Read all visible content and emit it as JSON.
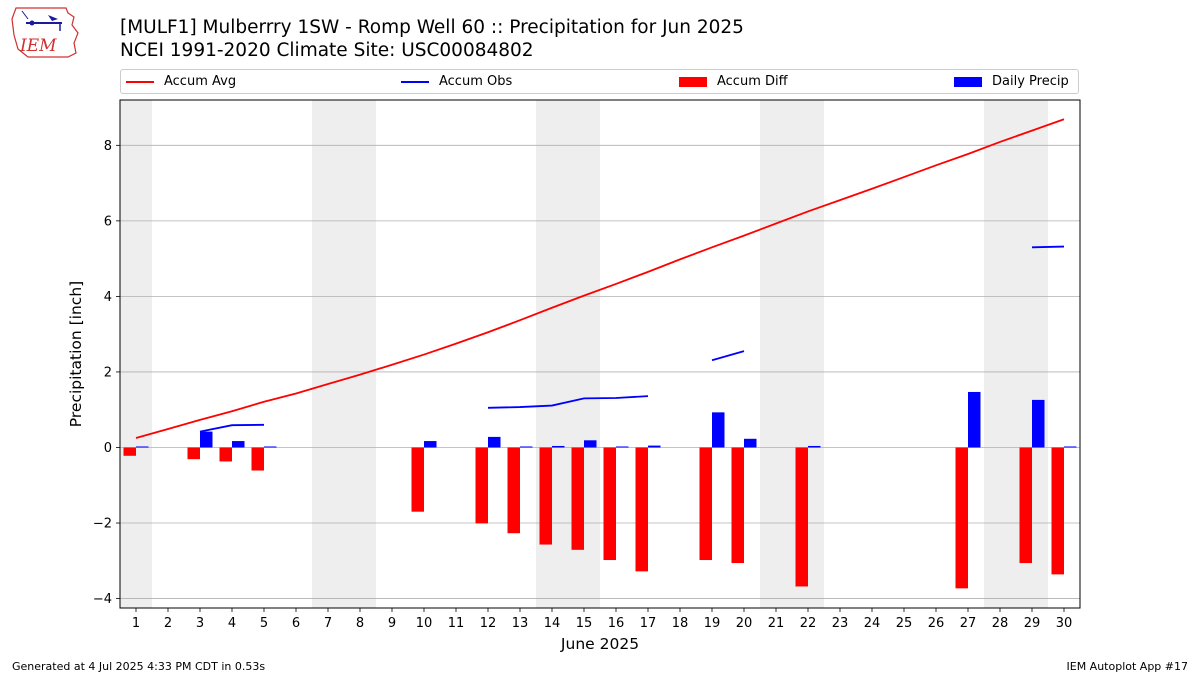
{
  "header": {
    "title_line1": "[MULF1] Mulberrry 1SW - Romp Well 60 :: Precipitation for Jun 2025",
    "title_line2": "NCEI 1991-2020 Climate Site: USC00084802",
    "logo_text": "IEM"
  },
  "legend": {
    "items": [
      {
        "label": "Accum Avg",
        "kind": "line",
        "color": "#ff0000"
      },
      {
        "label": "Accum Obs",
        "kind": "line",
        "color": "#0000ff"
      },
      {
        "label": "Accum Diff",
        "kind": "box",
        "color": "#ff0000"
      },
      {
        "label": "Daily Precip",
        "kind": "box",
        "color": "#0000ff"
      }
    ]
  },
  "footer": {
    "left": "Generated at 4 Jul 2025 4:33 PM CDT in 0.53s",
    "right": "IEM Autoplot App #17"
  },
  "chart_data": {
    "type": "bar",
    "xlabel": "June 2025",
    "ylabel": "Precipitation [inch]",
    "xlim": [
      0.5,
      30.5
    ],
    "ylim": [
      -4.25,
      9.2
    ],
    "yticks": [
      -4,
      -2,
      0,
      2,
      4,
      6,
      8
    ],
    "ytick_labels": [
      "−4",
      "−2",
      "0",
      "2",
      "4",
      "6",
      "8"
    ],
    "xticks": [
      1,
      2,
      3,
      4,
      5,
      6,
      7,
      8,
      9,
      10,
      11,
      12,
      13,
      14,
      15,
      16,
      17,
      18,
      19,
      20,
      21,
      22,
      23,
      24,
      25,
      26,
      27,
      28,
      29,
      30
    ],
    "grid": "horizontal",
    "weekend_shading": [
      [
        0.5,
        1.5
      ],
      [
        6.5,
        8.5
      ],
      [
        13.5,
        15.5
      ],
      [
        20.5,
        22.5
      ],
      [
        27.5,
        29.5
      ]
    ],
    "shading_color": "#eeeeee",
    "accum_avg": [
      0.25,
      0.49,
      0.73,
      0.96,
      1.21,
      1.43,
      1.68,
      1.93,
      2.19,
      2.46,
      2.75,
      3.05,
      3.37,
      3.7,
      4.02,
      4.33,
      4.65,
      4.98,
      5.3,
      5.61,
      5.93,
      6.25,
      6.55,
      6.85,
      7.16,
      7.47,
      7.77,
      8.09,
      8.39,
      8.69
    ],
    "accum_obs_segments": [
      {
        "days": [
          3,
          4,
          5
        ],
        "values": [
          0.42,
          0.59,
          0.6
        ]
      },
      {
        "days": [
          12,
          13,
          14,
          15,
          16,
          17
        ],
        "values": [
          1.05,
          1.07,
          1.11,
          1.3,
          1.31,
          1.36
        ]
      },
      {
        "days": [
          19,
          20
        ],
        "values": [
          2.31,
          2.55
        ]
      },
      {
        "days": [
          29,
          30
        ],
        "values": [
          5.3,
          5.32
        ]
      }
    ],
    "accum_diff": [
      {
        "day": 1,
        "value": -0.22
      },
      {
        "day": 3,
        "value": -0.31
      },
      {
        "day": 4,
        "value": -0.37
      },
      {
        "day": 5,
        "value": -0.61
      },
      {
        "day": 10,
        "value": -1.7
      },
      {
        "day": 12,
        "value": -2.01
      },
      {
        "day": 13,
        "value": -2.27
      },
      {
        "day": 14,
        "value": -2.57
      },
      {
        "day": 15,
        "value": -2.71
      },
      {
        "day": 16,
        "value": -2.98
      },
      {
        "day": 17,
        "value": -3.28
      },
      {
        "day": 19,
        "value": -2.98
      },
      {
        "day": 20,
        "value": -3.06
      },
      {
        "day": 22,
        "value": -3.68
      },
      {
        "day": 27,
        "value": -3.73
      },
      {
        "day": 29,
        "value": -3.06
      },
      {
        "day": 30,
        "value": -3.36
      }
    ],
    "daily_precip": [
      {
        "day": 1,
        "value": 0.01
      },
      {
        "day": 3,
        "value": 0.42
      },
      {
        "day": 4,
        "value": 0.17
      },
      {
        "day": 5,
        "value": 0.01
      },
      {
        "day": 10,
        "value": 0.17
      },
      {
        "day": 12,
        "value": 0.28
      },
      {
        "day": 13,
        "value": 0.02
      },
      {
        "day": 14,
        "value": 0.04
      },
      {
        "day": 15,
        "value": 0.19
      },
      {
        "day": 16,
        "value": 0.01
      },
      {
        "day": 17,
        "value": 0.05
      },
      {
        "day": 19,
        "value": 0.93
      },
      {
        "day": 20,
        "value": 0.23
      },
      {
        "day": 22,
        "value": 0.04
      },
      {
        "day": 27,
        "value": 1.47
      },
      {
        "day": 29,
        "value": 1.26
      },
      {
        "day": 30,
        "value": 0.02
      }
    ],
    "colors": {
      "avg": "#ff0000",
      "obs": "#0000ff",
      "diff": "#ff0000",
      "precip": "#0000ff",
      "grid": "#b0b0b0"
    }
  }
}
